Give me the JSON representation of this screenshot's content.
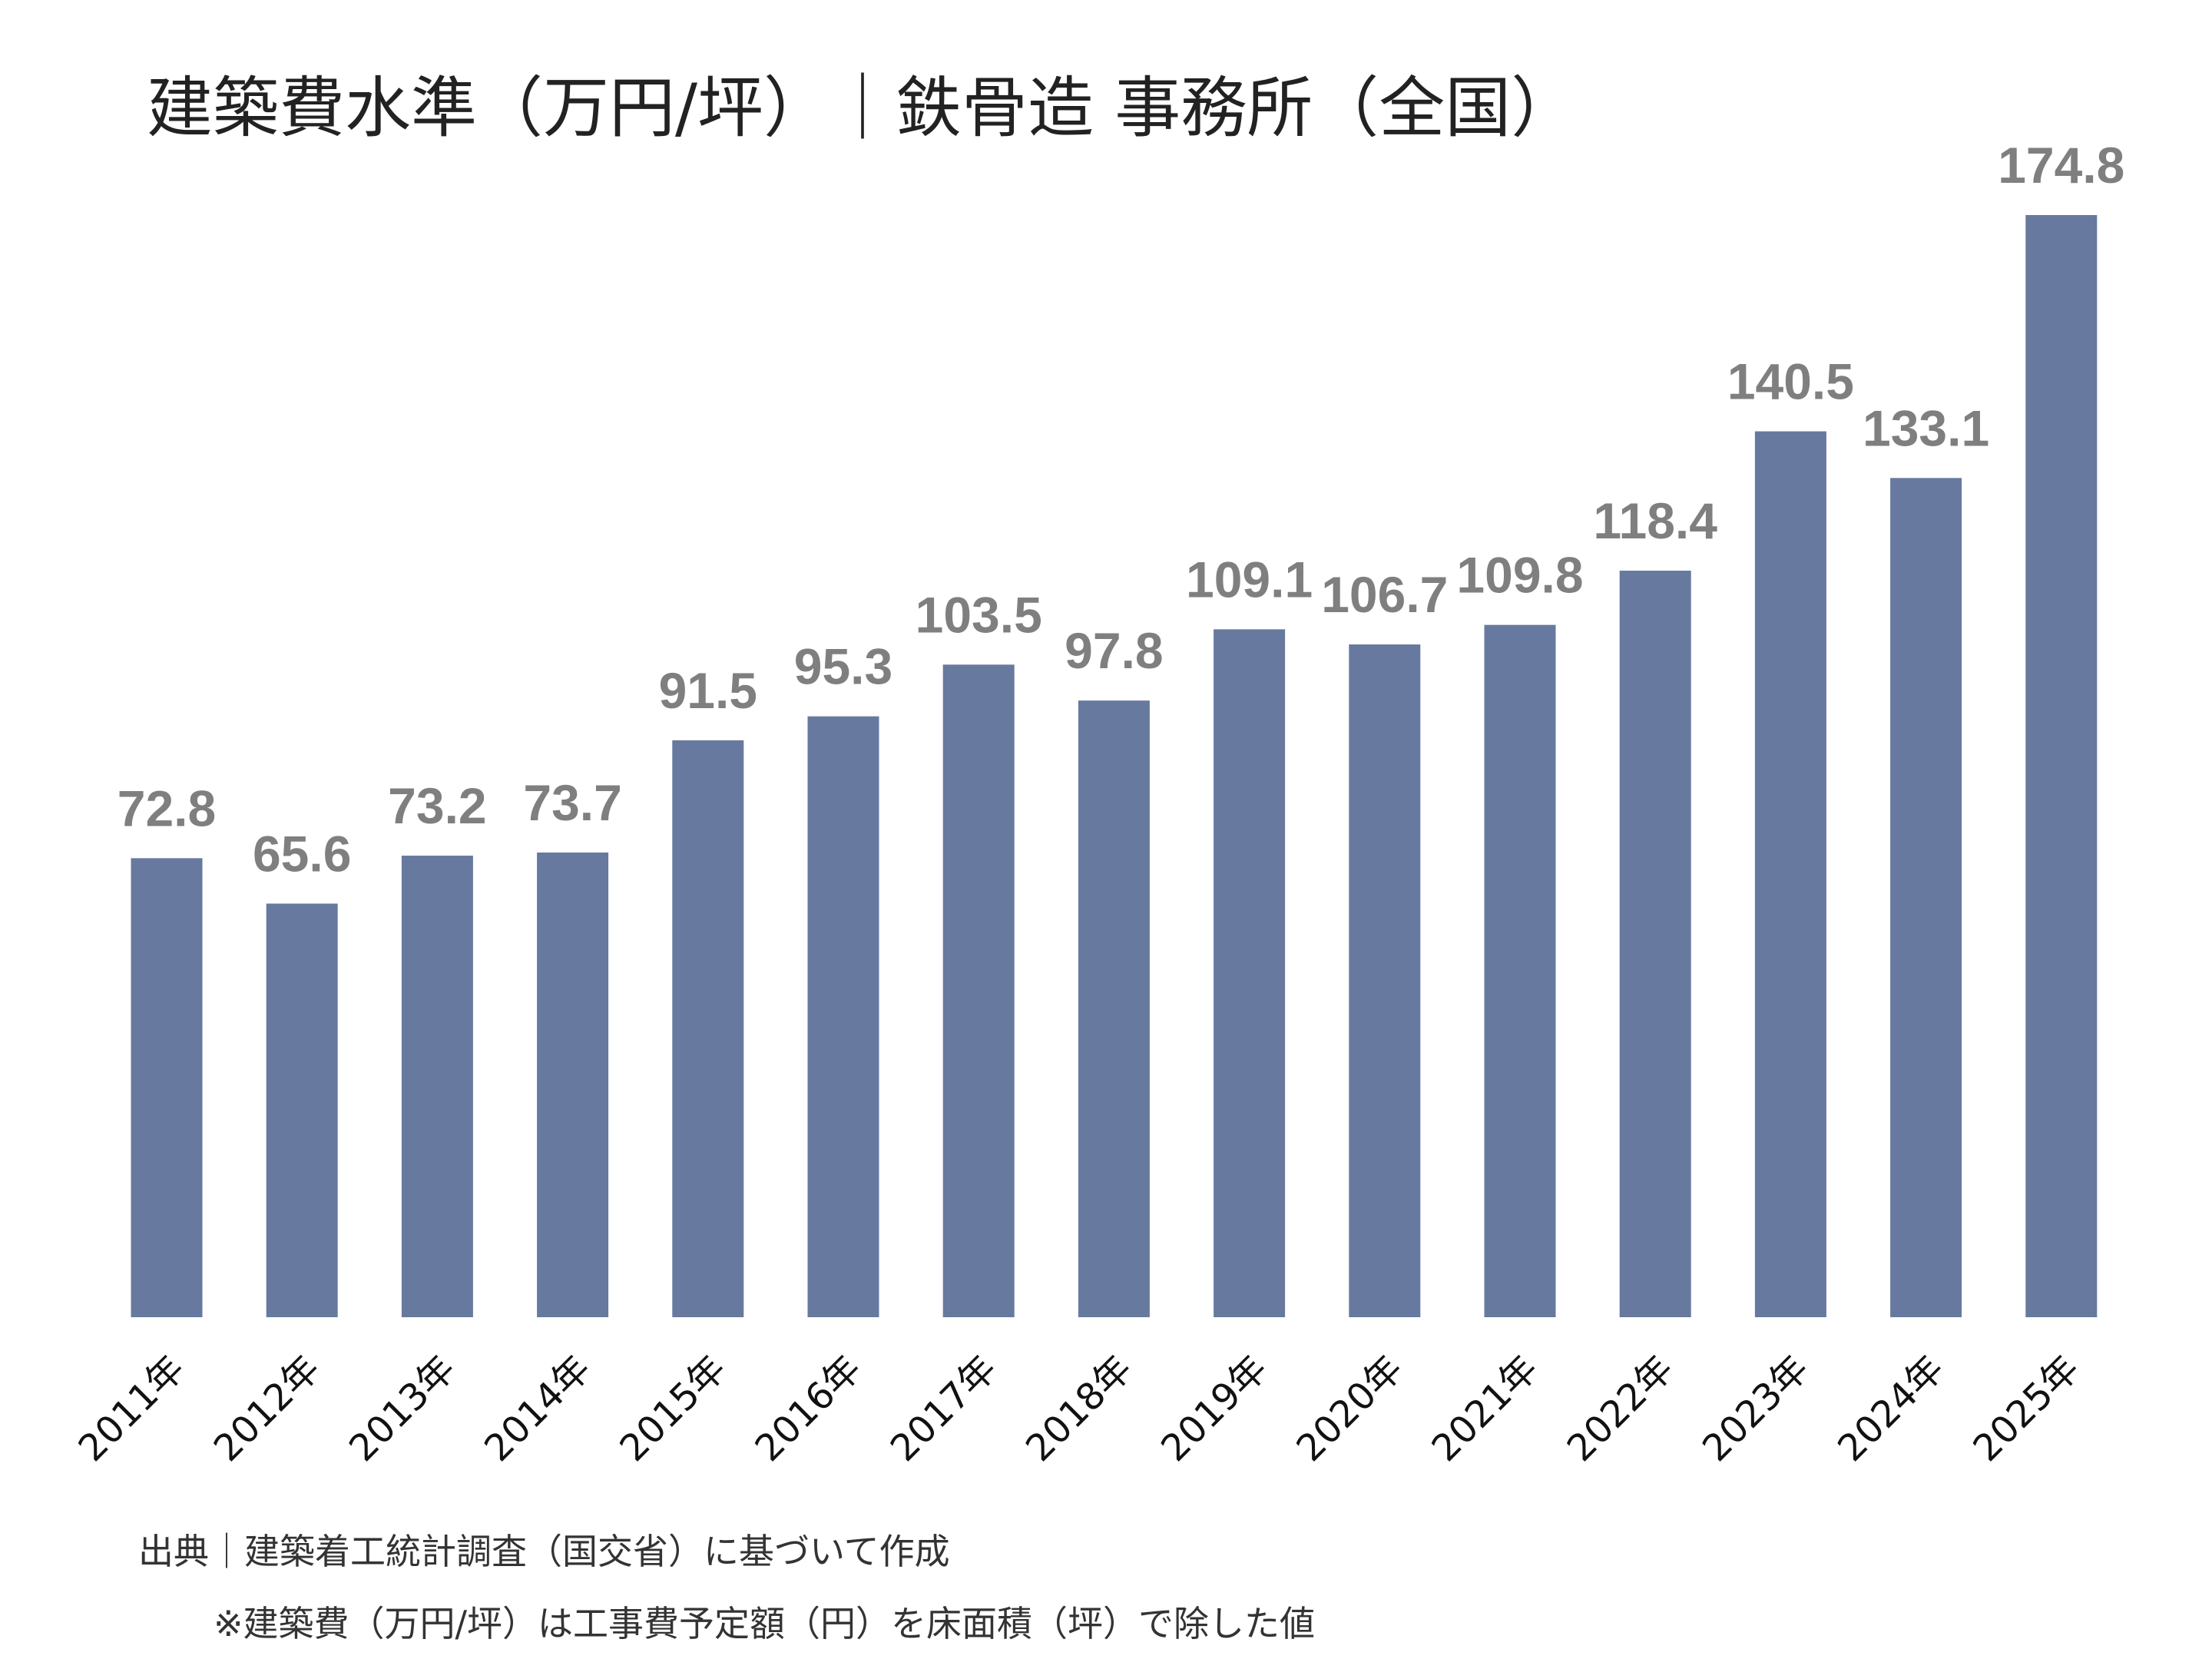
{
  "chart_data": {
    "type": "bar",
    "title": "建築費水準（万円/坪）｜鉄骨造 事務所（全国）",
    "categories": [
      "2011年",
      "2012年",
      "2013年",
      "2014年",
      "2015年",
      "2016年",
      "2017年",
      "2018年",
      "2019年",
      "2020年",
      "2021年",
      "2022年",
      "2023年",
      "2024年",
      "2025年"
    ],
    "values": [
      72.8,
      65.6,
      73.2,
      73.7,
      91.5,
      95.3,
      103.5,
      97.8,
      109.1,
      106.7,
      109.8,
      118.4,
      140.5,
      133.1,
      174.8
    ],
    "color": "#67799f",
    "notes": [
      "出典｜建築着工統計調査（国交省）に基づいて作成",
      "※建築費（万円/坪）は工事費予定額（円）を床面積（坪）で除した値"
    ]
  }
}
